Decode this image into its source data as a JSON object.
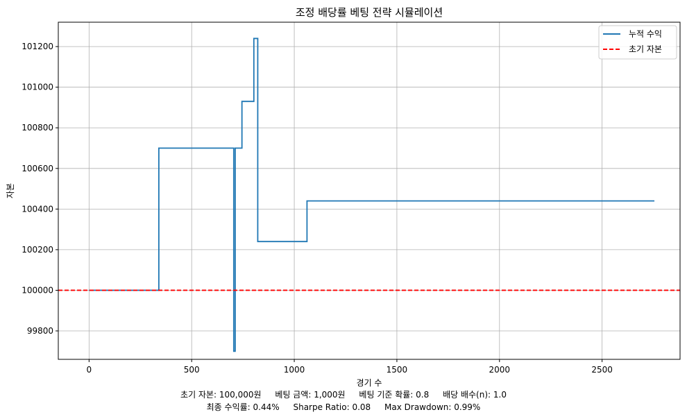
{
  "chart_data": {
    "type": "line",
    "title": "조정 배당률 베팅 전략 시뮬레이션",
    "xlabel": "경기 수",
    "ylabel": "자본",
    "xlim": [
      -150,
      2880
    ],
    "ylim": [
      99660,
      101320
    ],
    "xticks": [
      0,
      500,
      1000,
      1500,
      2000,
      2500
    ],
    "yticks": [
      99800,
      100000,
      100200,
      100400,
      100600,
      100800,
      101000,
      101200
    ],
    "grid": true,
    "legend_position": "top-right",
    "series": [
      {
        "name": "누적 수익",
        "style": "step-line",
        "color": "#1f77b4",
        "x": [
          0,
          340,
          340,
          705,
          705,
          712,
          712,
          718,
          718,
          745,
          745,
          803,
          803,
          822,
          822,
          1062,
          1062,
          2755
        ],
        "y": [
          100000,
          100000,
          100700,
          100700,
          99700,
          99700,
          100700,
          100700,
          100700,
          100700,
          100930,
          100930,
          101240,
          101240,
          100240,
          100240,
          100440,
          100440
        ]
      },
      {
        "name": "초기 자본",
        "style": "dashed-horizontal",
        "color": "#ff0000",
        "y": 100000
      }
    ]
  },
  "captions": {
    "line1": [
      "초기 자본: 100,000원",
      "베팅 금액: 1,000원",
      "베팅 기준 확률: 0.8",
      "배당 배수(n): 1.0"
    ],
    "line2": [
      "최종 수익률: 0.44%",
      "Sharpe Ratio: 0.08",
      "Max Drawdown: 0.99%"
    ]
  }
}
